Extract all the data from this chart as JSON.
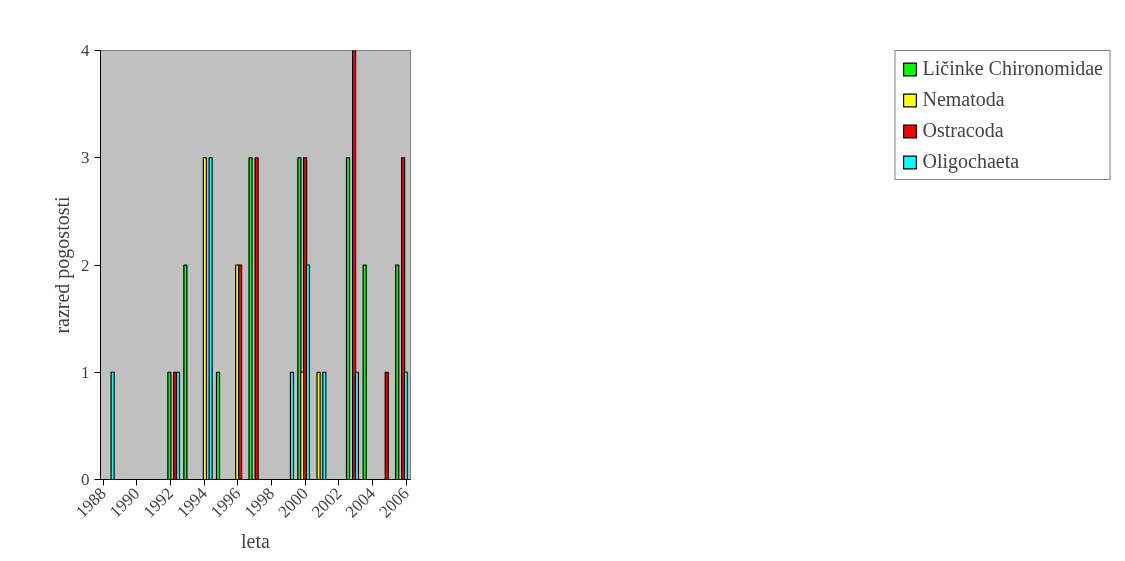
{
  "chart_data": {
    "type": "bar",
    "xlabel": "leta",
    "ylabel": "razred pogostosti",
    "xlim": [
      1987.85,
      2006.26
    ],
    "xticks": [
      1988,
      1990,
      1992,
      1994,
      1996,
      1998,
      2000,
      2002,
      2004,
      2006
    ],
    "ylim": [
      0,
      4
    ],
    "yticks": [
      0,
      1,
      2,
      3,
      4
    ],
    "grid": false,
    "legend": "right",
    "series": [
      {
        "name": "Ličinke Chironomidae",
        "color": "#00ff00",
        "x": [
          1991.94,
          1992.89,
          1994.83,
          1996.76,
          1999.66,
          2002.55,
          2003.54,
          2005.47
        ],
        "values": [
          1,
          2,
          1,
          3,
          3,
          3,
          2,
          2
        ]
      },
      {
        "name": "Nematoda",
        "color": "#ffff00",
        "x": [
          1994.05,
          1995.97,
          1999.83,
          2000.8
        ],
        "values": [
          3,
          2,
          1,
          1
        ]
      },
      {
        "name": "Ostracoda",
        "color": "#ff0000",
        "x": [
          1992.28,
          1996.14,
          1997.12,
          2000.0,
          2002.91,
          2004.85,
          2005.82
        ],
        "values": [
          1,
          2,
          3,
          3,
          4,
          1,
          3
        ]
      },
      {
        "name": "Oligochaeta",
        "color": "#00ffff",
        "x": [
          1988.57,
          1992.45,
          1994.39,
          1999.22,
          2000.17,
          2001.14,
          2003.08,
          2005.99
        ],
        "values": [
          1,
          1,
          3,
          1,
          2,
          1,
          1,
          1
        ]
      }
    ]
  }
}
